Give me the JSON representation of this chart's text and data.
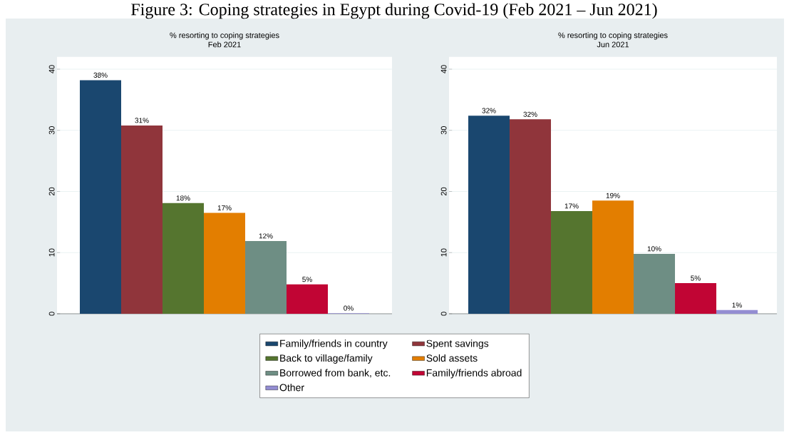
{
  "chart_data": [
    {
      "type": "bar",
      "title": "% resorting to coping strategies",
      "subtitle": "Feb 2021",
      "annotations": [
        "Figure 3: Coping strategies in Egypt during Covid-19 (Feb 2021 – Jun 2021)"
      ],
      "categories": [
        null
      ],
      "ylim": [
        0,
        42
      ],
      "yticks": [
        0,
        10,
        20,
        30,
        40
      ],
      "grid": "y",
      "legend": "bottom",
      "series": [
        {
          "name": "Family/friends in country",
          "color": "#1a476f",
          "values": [
            38.2
          ],
          "value_labels": [
            "38%"
          ]
        },
        {
          "name": "Spent savings",
          "color": "#90353b",
          "values": [
            30.8
          ],
          "value_labels": [
            "31%"
          ]
        },
        {
          "name": "Back to village/family",
          "color": "#55752f",
          "values": [
            18.1
          ],
          "value_labels": [
            "18%"
          ]
        },
        {
          "name": "Sold assets",
          "color": "#e37e00",
          "values": [
            16.5
          ],
          "value_labels": [
            "17%"
          ]
        },
        {
          "name": "Borrowed from bank, etc.",
          "color": "#6e8e84",
          "values": [
            11.9
          ],
          "value_labels": [
            "12%"
          ]
        },
        {
          "name": "Family/friends abroad",
          "color": "#c10534",
          "values": [
            4.8
          ],
          "value_labels": [
            "5%"
          ]
        },
        {
          "name": "Other",
          "color": "#938dd2",
          "values": [
            0.1
          ],
          "value_labels": [
            "0%"
          ]
        }
      ]
    },
    {
      "type": "bar",
      "title": "% resorting to coping strategies",
      "subtitle": "Jun 2021",
      "categories": [
        null
      ],
      "ylim": [
        0,
        42
      ],
      "yticks": [
        0,
        10,
        20,
        30,
        40
      ],
      "grid": "y",
      "series": [
        {
          "color": "#1a476f",
          "values": [
            32.4
          ],
          "value_labels": [
            "32%"
          ]
        },
        {
          "color": "#90353b",
          "values": [
            31.8
          ],
          "value_labels": [
            "32%"
          ]
        },
        {
          "color": "#55752f",
          "values": [
            16.8
          ],
          "value_labels": [
            "17%"
          ]
        },
        {
          "color": "#e37e00",
          "values": [
            18.5
          ],
          "value_labels": [
            "19%"
          ]
        },
        {
          "color": "#6e8e84",
          "values": [
            9.8
          ],
          "value_labels": [
            "10%"
          ]
        },
        {
          "color": "#c10534",
          "values": [
            5.0
          ],
          "value_labels": [
            "5%"
          ]
        },
        {
          "color": "#938dd2",
          "values": [
            0.6
          ],
          "value_labels": [
            "1%"
          ]
        }
      ]
    }
  ]
}
